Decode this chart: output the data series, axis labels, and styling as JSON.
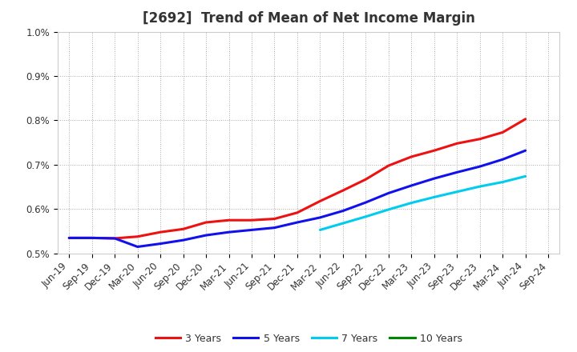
{
  "title": "[2692]  Trend of Mean of Net Income Margin",
  "background_color": "#ffffff",
  "grid_color": "#aaaaaa",
  "ylim": [
    0.005,
    0.01
  ],
  "yticks": [
    0.005,
    0.006,
    0.007,
    0.008,
    0.009,
    0.01
  ],
  "ytick_labels": [
    "0.5%",
    "0.6%",
    "0.7%",
    "0.8%",
    "0.9%",
    "1.0%"
  ],
  "x_labels": [
    "Jun-19",
    "Sep-19",
    "Dec-19",
    "Mar-20",
    "Jun-20",
    "Sep-20",
    "Dec-20",
    "Mar-21",
    "Jun-21",
    "Sep-21",
    "Dec-21",
    "Mar-22",
    "Jun-22",
    "Sep-22",
    "Dec-22",
    "Mar-23",
    "Jun-23",
    "Sep-23",
    "Dec-23",
    "Mar-24",
    "Jun-24",
    "Sep-24"
  ],
  "series": {
    "3 Years": {
      "color": "#ee1111",
      "values": [
        0.00535,
        0.00535,
        0.00534,
        0.00538,
        0.00548,
        0.00555,
        0.0057,
        0.00575,
        0.00575,
        0.00578,
        0.00592,
        0.00618,
        0.00642,
        0.00667,
        0.00698,
        0.00718,
        0.00732,
        0.00748,
        0.00758,
        0.00773,
        0.00803,
        null
      ]
    },
    "5 Years": {
      "color": "#1111ee",
      "values": [
        0.00535,
        0.00535,
        0.00534,
        0.00515,
        0.00522,
        0.0053,
        0.00541,
        0.00548,
        0.00553,
        0.00558,
        0.0057,
        0.00581,
        0.00596,
        0.00615,
        0.00636,
        0.00653,
        0.00669,
        0.00683,
        0.00696,
        0.00712,
        0.00732,
        null
      ]
    },
    "7 Years": {
      "color": "#00ccee",
      "values": [
        null,
        null,
        null,
        null,
        null,
        null,
        null,
        null,
        null,
        null,
        null,
        0.00553,
        0.00568,
        0.00583,
        0.00599,
        0.00614,
        0.00627,
        0.00639,
        0.00651,
        0.00661,
        0.00674,
        null
      ]
    },
    "10 Years": {
      "color": "#008800",
      "values": [
        null,
        null,
        null,
        null,
        null,
        null,
        null,
        null,
        null,
        null,
        null,
        null,
        null,
        null,
        null,
        null,
        null,
        null,
        null,
        null,
        null,
        null
      ]
    }
  },
  "legend_order": [
    "3 Years",
    "5 Years",
    "7 Years",
    "10 Years"
  ],
  "title_fontsize": 12,
  "tick_fontsize": 8.5,
  "legend_fontsize": 9
}
